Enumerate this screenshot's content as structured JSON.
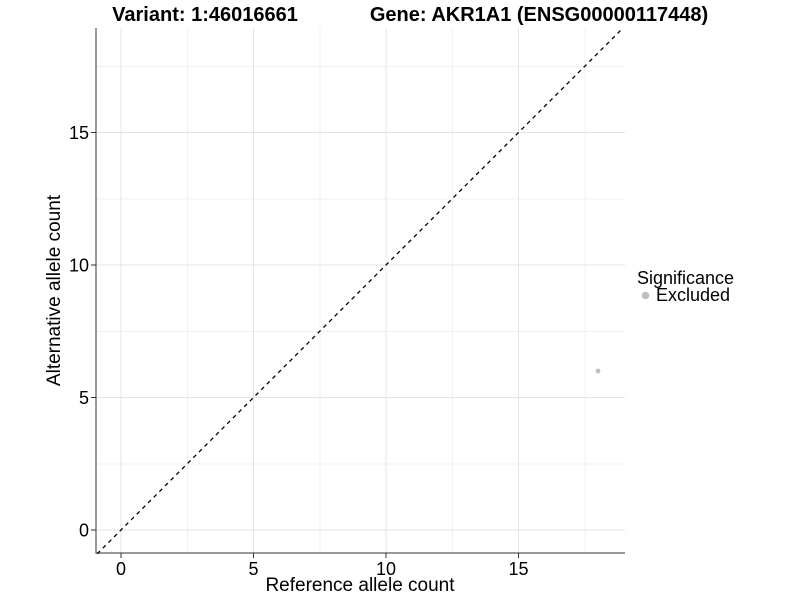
{
  "titles": {
    "variant": "Variant: 1:46016661",
    "gene": "Gene: AKR1A1 (ENSG00000117448)"
  },
  "chart_data": {
    "type": "scatter",
    "title_left": "Variant: 1:46016661",
    "title_right": "Gene: AKR1A1 (ENSG00000117448)",
    "xlabel": "Reference allele count",
    "ylabel": "Alternative allele count",
    "xlim": [
      -0.9,
      18.9
    ],
    "ylim": [
      -0.9,
      18.9
    ],
    "xticks": [
      0,
      5,
      10,
      15
    ],
    "yticks": [
      0,
      5,
      10,
      15
    ],
    "xticks_minor": [
      2.5,
      7.5,
      12.5,
      17.5
    ],
    "yticks_minor": [
      2.5,
      7.5,
      12.5,
      17.5
    ],
    "grid": "major+minor, light grey on white",
    "reference_line": {
      "kind": "identity y=x",
      "style": "dashed",
      "color": "#000000"
    },
    "series": [
      {
        "name": "Excluded",
        "color": "#bebebe",
        "points": [
          {
            "x": 18,
            "y": 6
          }
        ]
      }
    ],
    "legend": {
      "title": "Significance",
      "position": "right",
      "entries": [
        {
          "label": "Excluded",
          "color": "#bebebe"
        }
      ]
    }
  },
  "colors": {
    "background": "#ffffff",
    "grid_major": "#e4e4e4",
    "grid_minor": "#f1f1f1",
    "axis_line": "#333333",
    "point": "#bebebe",
    "identity_line": "#000000",
    "text": "#000000"
  }
}
